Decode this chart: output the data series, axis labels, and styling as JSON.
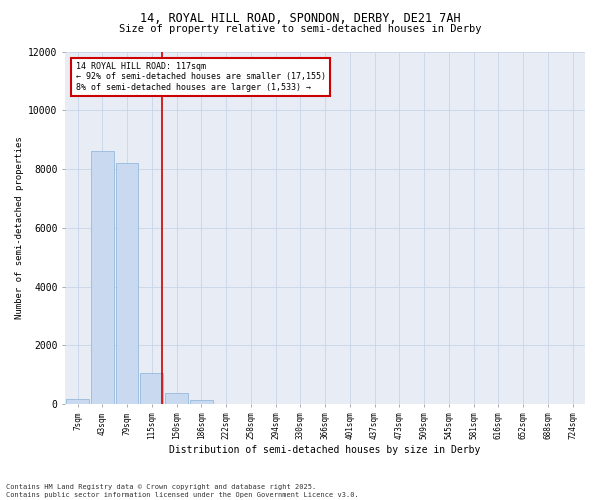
{
  "title_line1": "14, ROYAL HILL ROAD, SPONDON, DERBY, DE21 7AH",
  "title_line2": "Size of property relative to semi-detached houses in Derby",
  "xlabel": "Distribution of semi-detached houses by size in Derby",
  "ylabel": "Number of semi-detached properties",
  "categories": [
    "7sqm",
    "43sqm",
    "79sqm",
    "115sqm",
    "150sqm",
    "186sqm",
    "222sqm",
    "258sqm",
    "294sqm",
    "330sqm",
    "366sqm",
    "401sqm",
    "437sqm",
    "473sqm",
    "509sqm",
    "545sqm",
    "581sqm",
    "616sqm",
    "652sqm",
    "688sqm",
    "724sqm"
  ],
  "bar_heights": [
    180,
    8600,
    8200,
    1050,
    380,
    150,
    0,
    0,
    0,
    0,
    0,
    0,
    0,
    0,
    0,
    0,
    0,
    0,
    0,
    0,
    0
  ],
  "bar_color": "#c9d9f0",
  "bar_edge_color": "#8ab0d8",
  "property_line_color": "#cc0000",
  "annotation_title": "14 ROYAL HILL ROAD: 117sqm",
  "annotation_line1": "← 92% of semi-detached houses are smaller (17,155)",
  "annotation_line2": "8% of semi-detached houses are larger (1,533) →",
  "annotation_box_color": "#cc0000",
  "ylim": [
    0,
    12000
  ],
  "yticks": [
    0,
    2000,
    4000,
    6000,
    8000,
    10000,
    12000
  ],
  "grid_color": "#c8d4e8",
  "bg_color": "#e8edf5",
  "footer_line1": "Contains HM Land Registry data © Crown copyright and database right 2025.",
  "footer_line2": "Contains public sector information licensed under the Open Government Licence v3.0."
}
